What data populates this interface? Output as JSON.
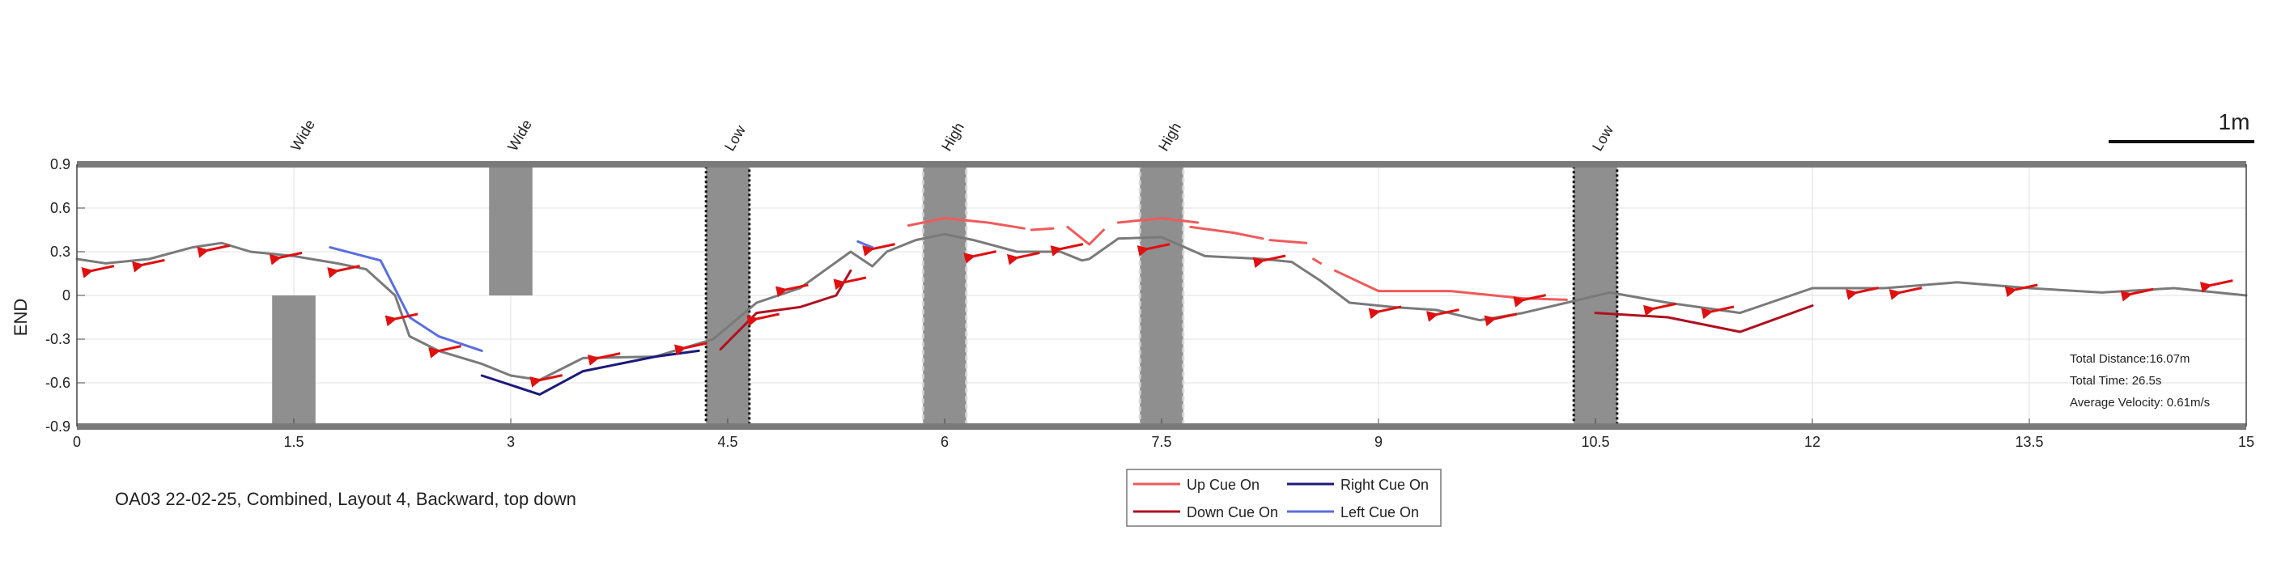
{
  "caption": "OA03 22-02-25, Combined, Layout 4, Backward, top down",
  "scale_bar_label": "1m",
  "stats": {
    "distance": "Total Distance:16.07m",
    "time": "Total Time: 26.5s",
    "velocity": "Average Velocity: 0.61m/s"
  },
  "legend": [
    {
      "label": "Up Cue On",
      "color": "#f05a5a"
    },
    {
      "label": "Right Cue On",
      "color": "#1a1a7a"
    },
    {
      "label": "Down Cue On",
      "color": "#b01020"
    },
    {
      "label": "Left Cue On",
      "color": "#5a6ee0"
    }
  ],
  "chart_data": {
    "type": "line",
    "ylabel": "END",
    "xlim": [
      0,
      15
    ],
    "ylim": [
      -0.9,
      0.9
    ],
    "xticks": [
      "0",
      "1.5",
      "3",
      "4.5",
      "6",
      "7.5",
      "9",
      "10.5",
      "12",
      "13.5",
      "15"
    ],
    "yticks": [
      "0.9",
      "0.6",
      "0.3",
      "0",
      "-0.3",
      "-0.6",
      "-0.9"
    ],
    "grid": true,
    "obstacles": [
      {
        "label": "Wide",
        "x0": 1.35,
        "x1": 1.65,
        "y0": -0.9,
        "y1": 0.0,
        "style": "solid",
        "label_x": 1.5
      },
      {
        "label": "Wide",
        "x0": 2.85,
        "x1": 3.15,
        "y0": 0.0,
        "y1": 0.9,
        "style": "solid",
        "label_x": 3.0
      },
      {
        "label": "Low",
        "x0": 4.35,
        "x1": 4.65,
        "y0": -0.9,
        "y1": 0.9,
        "style": "dark-dotted",
        "label_x": 4.5
      },
      {
        "label": "High",
        "x0": 5.85,
        "x1": 6.15,
        "y0": -0.9,
        "y1": 0.9,
        "style": "light-dashed",
        "label_x": 6.0
      },
      {
        "label": "High",
        "x0": 7.35,
        "x1": 7.65,
        "y0": -0.9,
        "y1": 0.9,
        "style": "light-dashed",
        "label_x": 7.5
      },
      {
        "label": "Low",
        "x0": 10.35,
        "x1": 10.65,
        "y0": -0.9,
        "y1": 0.9,
        "style": "dark-dotted",
        "label_x": 10.5
      }
    ],
    "series": [
      {
        "key": "path",
        "color": "#7a7a7a",
        "x": [
          15.0,
          14.5,
          14.0,
          13.5,
          13.0,
          12.5,
          12.0,
          11.5,
          11.0,
          10.6,
          10.3,
          10.0,
          9.7,
          9.4,
          9.1,
          8.8,
          8.6,
          8.4,
          8.2,
          7.8,
          7.5,
          7.2,
          7.0,
          6.95,
          6.8,
          6.5,
          6.2,
          6.0,
          5.8,
          5.6,
          5.5,
          5.35,
          5.0,
          4.7,
          4.4,
          4.0,
          3.5,
          3.2,
          3.0,
          2.8,
          2.5,
          2.3,
          2.2,
          2.0,
          1.8,
          1.5,
          1.2,
          1.0,
          0.8,
          0.5,
          0.2,
          0.0
        ],
        "y": [
          0.0,
          0.05,
          0.02,
          0.05,
          0.09,
          0.05,
          0.05,
          -0.12,
          -0.05,
          0.02,
          -0.05,
          -0.12,
          -0.17,
          -0.1,
          -0.08,
          -0.05,
          0.1,
          0.23,
          0.25,
          0.27,
          0.4,
          0.39,
          0.25,
          0.24,
          0.3,
          0.3,
          0.38,
          0.42,
          0.38,
          0.3,
          0.2,
          0.3,
          0.05,
          -0.05,
          -0.3,
          -0.42,
          -0.43,
          -0.58,
          -0.55,
          -0.47,
          -0.38,
          -0.28,
          0.0,
          0.18,
          0.22,
          0.27,
          0.3,
          0.36,
          0.33,
          0.25,
          0.22,
          0.25
        ]
      },
      {
        "key": "up",
        "color": "#f05a5a",
        "segments": [
          {
            "x": [
              5.75,
              6.0,
              6.3,
              6.55
            ],
            "y": [
              0.48,
              0.53,
              0.5,
              0.46
            ]
          },
          {
            "x": [
              6.6,
              6.75
            ],
            "y": [
              0.45,
              0.46
            ]
          },
          {
            "x": [
              6.85,
              7.0,
              7.1
            ],
            "y": [
              0.47,
              0.35,
              0.45
            ]
          },
          {
            "x": [
              7.2,
              7.5,
              7.75
            ],
            "y": [
              0.5,
              0.53,
              0.5
            ]
          },
          {
            "x": [
              7.7,
              8.0,
              8.2
            ],
            "y": [
              0.47,
              0.43,
              0.39
            ]
          },
          {
            "x": [
              8.25,
              8.5
            ],
            "y": [
              0.38,
              0.36
            ]
          },
          {
            "x": [
              8.55,
              8.6
            ],
            "y": [
              0.25,
              0.22
            ]
          },
          {
            "x": [
              8.7,
              9.0,
              9.5,
              10.0,
              10.3
            ],
            "y": [
              0.17,
              0.03,
              0.03,
              -0.02,
              -0.03
            ]
          }
        ]
      },
      {
        "key": "down",
        "color": "#b01020",
        "segments": [
          {
            "x": [
              4.45,
              4.7,
              5.0,
              5.25,
              5.35
            ],
            "y": [
              -0.37,
              -0.12,
              -0.08,
              0.0,
              0.17
            ]
          },
          {
            "x": [
              10.5,
              11.0,
              11.5,
              12.0
            ],
            "y": [
              -0.12,
              -0.15,
              -0.25,
              -0.07
            ]
          }
        ]
      },
      {
        "key": "right",
        "color": "#1a1a7a",
        "segments": [
          {
            "x": [
              2.8,
              3.2,
              3.5,
              4.0,
              4.3
            ],
            "y": [
              -0.55,
              -0.68,
              -0.52,
              -0.42,
              -0.38
            ]
          }
        ]
      },
      {
        "key": "left",
        "color": "#5a6ee0",
        "segments": [
          {
            "x": [
              1.75,
              2.1,
              2.3,
              2.5,
              2.8
            ],
            "y": [
              0.33,
              0.24,
              -0.15,
              -0.28,
              -0.38
            ]
          },
          {
            "x": [
              5.4,
              5.5
            ],
            "y": [
              0.37,
              0.33
            ]
          }
        ]
      }
    ],
    "arrows": [
      {
        "x": 14.75,
        "y": 0.08
      },
      {
        "x": 14.2,
        "y": 0.02
      },
      {
        "x": 13.4,
        "y": 0.05
      },
      {
        "x": 12.6,
        "y": 0.03
      },
      {
        "x": 12.3,
        "y": 0.03
      },
      {
        "x": 11.3,
        "y": -0.1
      },
      {
        "x": 10.9,
        "y": -0.08
      },
      {
        "x": 10.0,
        "y": -0.02
      },
      {
        "x": 9.8,
        "y": -0.15
      },
      {
        "x": 9.4,
        "y": -0.12
      },
      {
        "x": 9.0,
        "y": -0.1
      },
      {
        "x": 8.2,
        "y": 0.25
      },
      {
        "x": 7.4,
        "y": 0.33
      },
      {
        "x": 6.8,
        "y": 0.33
      },
      {
        "x": 6.5,
        "y": 0.27
      },
      {
        "x": 6.2,
        "y": 0.28
      },
      {
        "x": 5.5,
        "y": 0.33
      },
      {
        "x": 5.3,
        "y": 0.1
      },
      {
        "x": 4.9,
        "y": 0.05
      },
      {
        "x": 4.7,
        "y": -0.15
      },
      {
        "x": 4.2,
        "y": -0.35
      },
      {
        "x": 3.6,
        "y": -0.42
      },
      {
        "x": 3.2,
        "y": -0.57
      },
      {
        "x": 2.5,
        "y": -0.37
      },
      {
        "x": 2.2,
        "y": -0.15
      },
      {
        "x": 1.8,
        "y": 0.18
      },
      {
        "x": 1.4,
        "y": 0.27
      },
      {
        "x": 0.9,
        "y": 0.32
      },
      {
        "x": 0.45,
        "y": 0.22
      },
      {
        "x": 0.1,
        "y": 0.18
      }
    ]
  }
}
